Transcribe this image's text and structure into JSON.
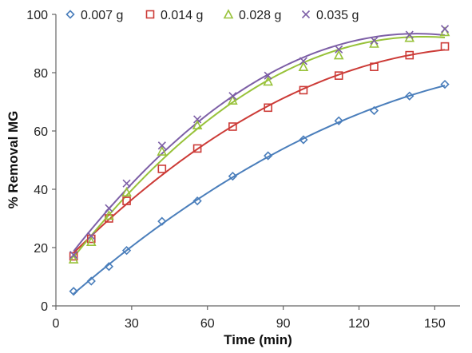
{
  "chart_data": {
    "type": "scatter",
    "title": "",
    "xlabel": "Time (min)",
    "ylabel": "% Removal MG",
    "xlim": [
      0,
      160
    ],
    "ylim": [
      0,
      100
    ],
    "xticks": [
      0,
      30,
      60,
      90,
      120,
      150
    ],
    "yticks": [
      0,
      20,
      40,
      60,
      80,
      100
    ],
    "grid": false,
    "legend_position": "top",
    "has_fit_curves": true,
    "series": [
      {
        "name": "0.007 g",
        "color": "#4a7ebb",
        "marker": "diamond",
        "x": [
          7,
          14,
          21,
          28,
          42,
          56,
          70,
          84,
          98,
          112,
          126,
          140,
          154
        ],
        "y": [
          5,
          8.5,
          13.5,
          19,
          29,
          36,
          44.5,
          51.5,
          57,
          63.5,
          67,
          72,
          76
        ]
      },
      {
        "name": "0.014 g",
        "color": "#cc3b37",
        "marker": "square",
        "x": [
          7,
          14,
          21,
          28,
          42,
          56,
          70,
          84,
          98,
          112,
          126,
          140,
          154
        ],
        "y": [
          17,
          23,
          30,
          36,
          47,
          54,
          61.5,
          68,
          74,
          79,
          82,
          86,
          89
        ]
      },
      {
        "name": "0.028 g",
        "color": "#98c23a",
        "marker": "triangle",
        "x": [
          7,
          14,
          21,
          28,
          42,
          56,
          70,
          84,
          98,
          112,
          126,
          140,
          154
        ],
        "y": [
          16,
          22,
          31,
          39,
          53,
          62,
          70.5,
          77,
          82,
          86,
          90,
          92,
          94
        ]
      },
      {
        "name": "0.035 g",
        "color": "#7d5fa6",
        "marker": "x",
        "x": [
          7,
          14,
          21,
          28,
          42,
          56,
          70,
          84,
          98,
          112,
          126,
          140,
          154
        ],
        "y": [
          17.5,
          24,
          33.5,
          42,
          55,
          64,
          72,
          79,
          84,
          88,
          91,
          93,
          95
        ]
      }
    ]
  }
}
